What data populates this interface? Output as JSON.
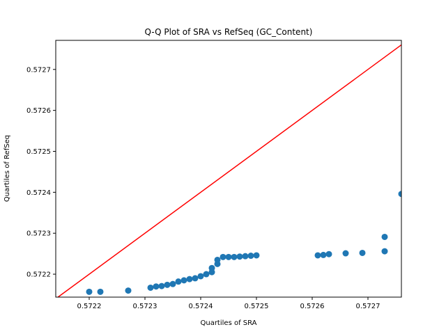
{
  "chart_data": {
    "type": "scatter",
    "title": "Q-Q Plot of SRA vs RefSeq (GC_Content)",
    "xlabel": "Quartiles of SRA",
    "ylabel": "Quartiles of RefSeq",
    "xlim": [
      0.57214,
      0.57276
    ],
    "ylim": [
      0.572144,
      0.572771
    ],
    "xticks": [
      0.5722,
      0.5723,
      0.5724,
      0.5725,
      0.5726,
      0.5727
    ],
    "xtick_labels": [
      "0.5722",
      "0.5723",
      "0.5724",
      "0.5725",
      "0.5726",
      "0.5727"
    ],
    "yticks": [
      0.5722,
      0.5723,
      0.5724,
      0.5725,
      0.5726,
      0.5727
    ],
    "ytick_labels": [
      "0.5722",
      "0.5723",
      "0.5724",
      "0.5725",
      "0.5726",
      "0.5727"
    ],
    "grid": false,
    "colors": {
      "points": "#1f77b4",
      "reference_line": "#ff0000"
    },
    "reference_line": {
      "type": "y=x"
    },
    "points": [
      [
        0.5722,
        0.572157
      ],
      [
        0.57222,
        0.572157
      ],
      [
        0.57227,
        0.57216
      ],
      [
        0.57231,
        0.572167
      ],
      [
        0.57232,
        0.57217
      ],
      [
        0.57233,
        0.572171
      ],
      [
        0.57234,
        0.572174
      ],
      [
        0.57235,
        0.572176
      ],
      [
        0.57236,
        0.572182
      ],
      [
        0.57237,
        0.572185
      ],
      [
        0.57238,
        0.572188
      ],
      [
        0.57239,
        0.57219
      ],
      [
        0.5724,
        0.572195
      ],
      [
        0.57241,
        0.5722
      ],
      [
        0.57242,
        0.572205
      ],
      [
        0.57242,
        0.572215
      ],
      [
        0.57243,
        0.572225
      ],
      [
        0.57243,
        0.572235
      ],
      [
        0.57244,
        0.572242
      ],
      [
        0.57245,
        0.572242
      ],
      [
        0.57246,
        0.572242
      ],
      [
        0.57247,
        0.572243
      ],
      [
        0.57248,
        0.572244
      ],
      [
        0.57249,
        0.572245
      ],
      [
        0.5725,
        0.572246
      ],
      [
        0.57261,
        0.572246
      ],
      [
        0.57262,
        0.572247
      ],
      [
        0.57263,
        0.572249
      ],
      [
        0.57266,
        0.572251
      ],
      [
        0.57269,
        0.572252
      ],
      [
        0.57273,
        0.572256
      ],
      [
        0.57273,
        0.572291
      ],
      [
        0.57276,
        0.572396
      ]
    ]
  }
}
